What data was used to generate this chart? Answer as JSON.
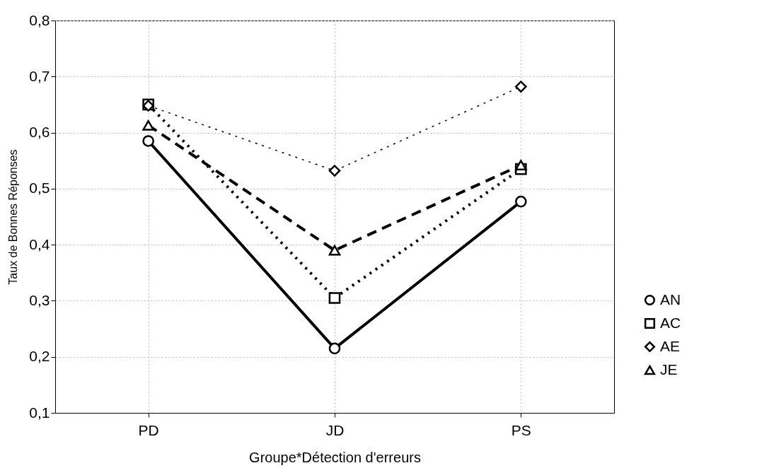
{
  "chart_data": {
    "type": "line",
    "xlabel": "Groupe*Détection d'erreurs",
    "ylabel": "Taux de Bonnes Réponses",
    "categories": [
      "PD",
      "JD",
      "PS"
    ],
    "series": [
      {
        "name": "AN",
        "color": "#000000",
        "marker": "circle",
        "line_style": "solid",
        "values": [
          0.585,
          0.215,
          0.477
        ]
      },
      {
        "name": "AC",
        "color": "#000000",
        "marker": "square",
        "line_style": "dotted",
        "values": [
          0.65,
          0.305,
          0.535
        ]
      },
      {
        "name": "AE",
        "color": "#000000",
        "marker": "diamond",
        "line_style": "dotted",
        "values": [
          0.648,
          0.532,
          0.682
        ]
      },
      {
        "name": "JE",
        "color": "#000000",
        "marker": "triangle",
        "line_style": "dashed",
        "values": [
          0.613,
          0.39,
          0.542
        ]
      }
    ],
    "ylim": [
      0.1,
      0.8
    ],
    "yticks": [
      {
        "value": 0.1,
        "label": "0,1"
      },
      {
        "value": 0.2,
        "label": "0,2"
      },
      {
        "value": 0.3,
        "label": "0,3"
      },
      {
        "value": 0.4,
        "label": "0,4"
      },
      {
        "value": 0.5,
        "label": "0,5"
      },
      {
        "value": 0.6,
        "label": "0,6"
      },
      {
        "value": 0.7,
        "label": "0,7"
      },
      {
        "value": 0.8,
        "label": "0,8"
      }
    ],
    "grid": true,
    "legend": "right"
  }
}
